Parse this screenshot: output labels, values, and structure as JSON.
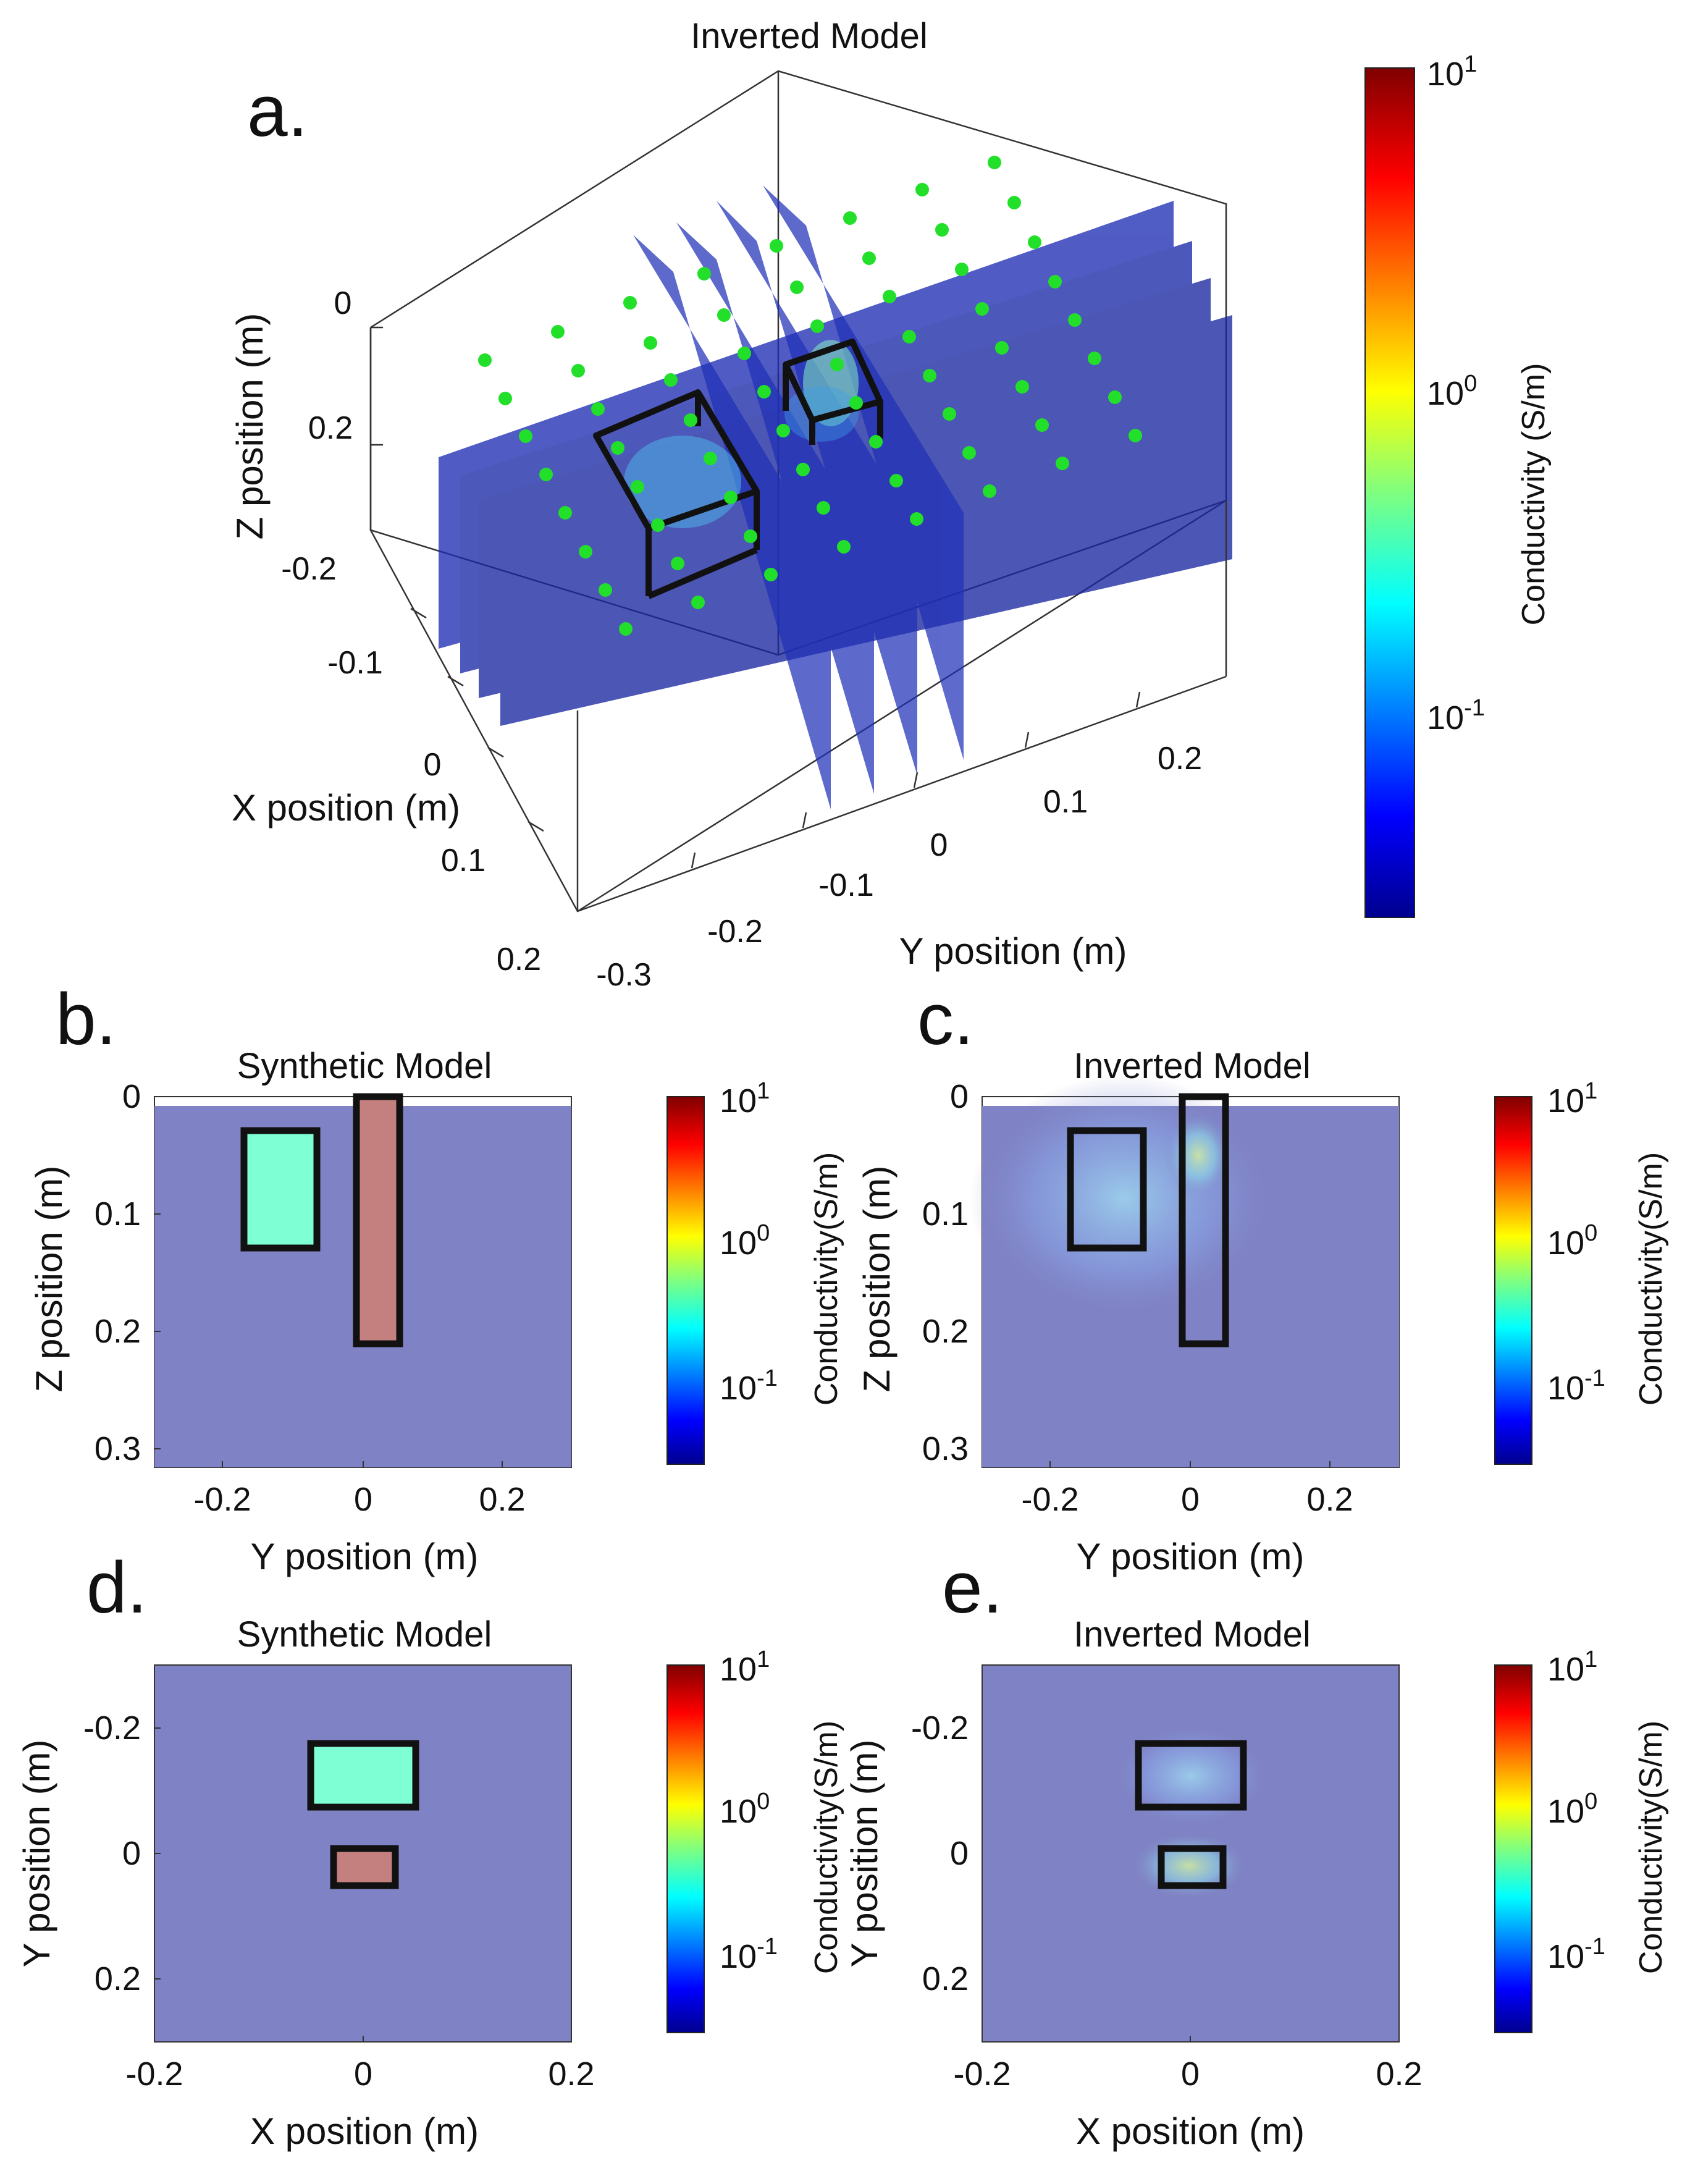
{
  "chart_data": [
    {
      "id": "a",
      "panel_label": "a.",
      "type": "3d-slice",
      "title": "Inverted Model",
      "xlabel": "X position (m)",
      "ylabel": "Y position (m)",
      "zlabel": "Z position (m)",
      "x_ticks": [
        "-0.2",
        "-0.1",
        "0",
        "0.1",
        "0.2"
      ],
      "y_ticks": [
        "-0.3",
        "-0.2",
        "-0.1",
        "0",
        "0.1",
        "0.2"
      ],
      "z_ticks": [
        "0",
        "0.2"
      ],
      "colorbar": {
        "label": "Conductivity (S/m)",
        "scale": "log",
        "ticks": [
          "10^1",
          "10^0",
          "10^-1"
        ]
      }
    },
    {
      "id": "b",
      "panel_label": "b.",
      "type": "heatmap",
      "title": "Synthetic Model",
      "xlabel": "Y position (m)",
      "ylabel": "Z position (m)",
      "xlim": [
        -0.3,
        0.3
      ],
      "ylim": [
        0,
        0.32
      ],
      "x_ticks": [
        "-0.2",
        "0",
        "0.2"
      ],
      "y_ticks": [
        "0",
        "0.1",
        "0.2",
        "0.3"
      ],
      "background_conductivity": 0.02,
      "anomalies": [
        {
          "name": "resistive block",
          "y": [
            -0.165,
            -0.065
          ],
          "z": [
            0.03,
            0.13
          ],
          "conductivity": 0.25
        },
        {
          "name": "conductive prism",
          "y": [
            -0.005,
            0.05
          ],
          "z": [
            0.0,
            0.21
          ],
          "conductivity": 10
        }
      ],
      "colorbar": {
        "label": "Conductivity(S/m)",
        "ticks": [
          "10^1",
          "10^0",
          "10^-1"
        ]
      }
    },
    {
      "id": "c",
      "panel_label": "c.",
      "type": "heatmap",
      "title": "Inverted Model",
      "xlabel": "Y position (m)",
      "ylabel": "Z position (m)",
      "xlim": [
        -0.3,
        0.3
      ],
      "ylim": [
        0,
        0.32
      ],
      "x_ticks": [
        "-0.2",
        "0",
        "0.2"
      ],
      "y_ticks": [
        "0",
        "0.1",
        "0.2",
        "0.3"
      ],
      "outlines": [
        {
          "y": [
            -0.165,
            -0.065
          ],
          "z": [
            0.03,
            0.13
          ]
        },
        {
          "y": [
            -0.005,
            0.05
          ],
          "z": [
            0.0,
            0.21
          ]
        }
      ],
      "colorbar": {
        "label": "Conductivity(S/m)",
        "ticks": [
          "10^1",
          "10^0",
          "10^-1"
        ]
      }
    },
    {
      "id": "d",
      "panel_label": "d.",
      "type": "heatmap",
      "title": "Synthetic Model",
      "xlabel": "X position (m)",
      "ylabel": "Y position (m)",
      "xlim": [
        -0.2,
        0.2
      ],
      "ylim": [
        -0.3,
        0.3
      ],
      "x_ticks": [
        "-0.2",
        "0",
        "0.2"
      ],
      "y_ticks": [
        "-0.2",
        "0",
        "0.2"
      ],
      "anomalies": [
        {
          "name": "resistive block",
          "x": [
            -0.05,
            0.05
          ],
          "y": [
            -0.17,
            -0.07
          ],
          "conductivity": 0.25
        },
        {
          "name": "conductive prism",
          "x": [
            -0.03,
            0.03
          ],
          "y": [
            -0.01,
            0.05
          ],
          "conductivity": 10
        }
      ],
      "colorbar": {
        "label": "Conductivity(S/m)",
        "ticks": [
          "10^1",
          "10^0",
          "10^-1"
        ]
      }
    },
    {
      "id": "e",
      "panel_label": "e.",
      "type": "heatmap",
      "title": "Inverted Model",
      "xlabel": "X position (m)",
      "ylabel": "Y position (m)",
      "xlim": [
        -0.2,
        0.2
      ],
      "ylim": [
        -0.3,
        0.3
      ],
      "x_ticks": [
        "-0.2",
        "0",
        "0.2"
      ],
      "y_ticks": [
        "-0.2",
        "0",
        "0.2"
      ],
      "outlines": [
        {
          "x": [
            -0.05,
            0.05
          ],
          "y": [
            -0.17,
            -0.07
          ]
        },
        {
          "x": [
            -0.03,
            0.03
          ],
          "y": [
            -0.01,
            0.05
          ]
        }
      ],
      "colorbar": {
        "label": "Conductivity(S/m)",
        "ticks": [
          "10^1",
          "10^0",
          "10^-1"
        ]
      }
    }
  ],
  "colors": {
    "background_model": "#7f82c4",
    "resistive_block": "#7fffd4",
    "conductive_prism": "#c47f7f",
    "slice_blue": "#1f2fb4",
    "electrode": "#22e02a"
  }
}
